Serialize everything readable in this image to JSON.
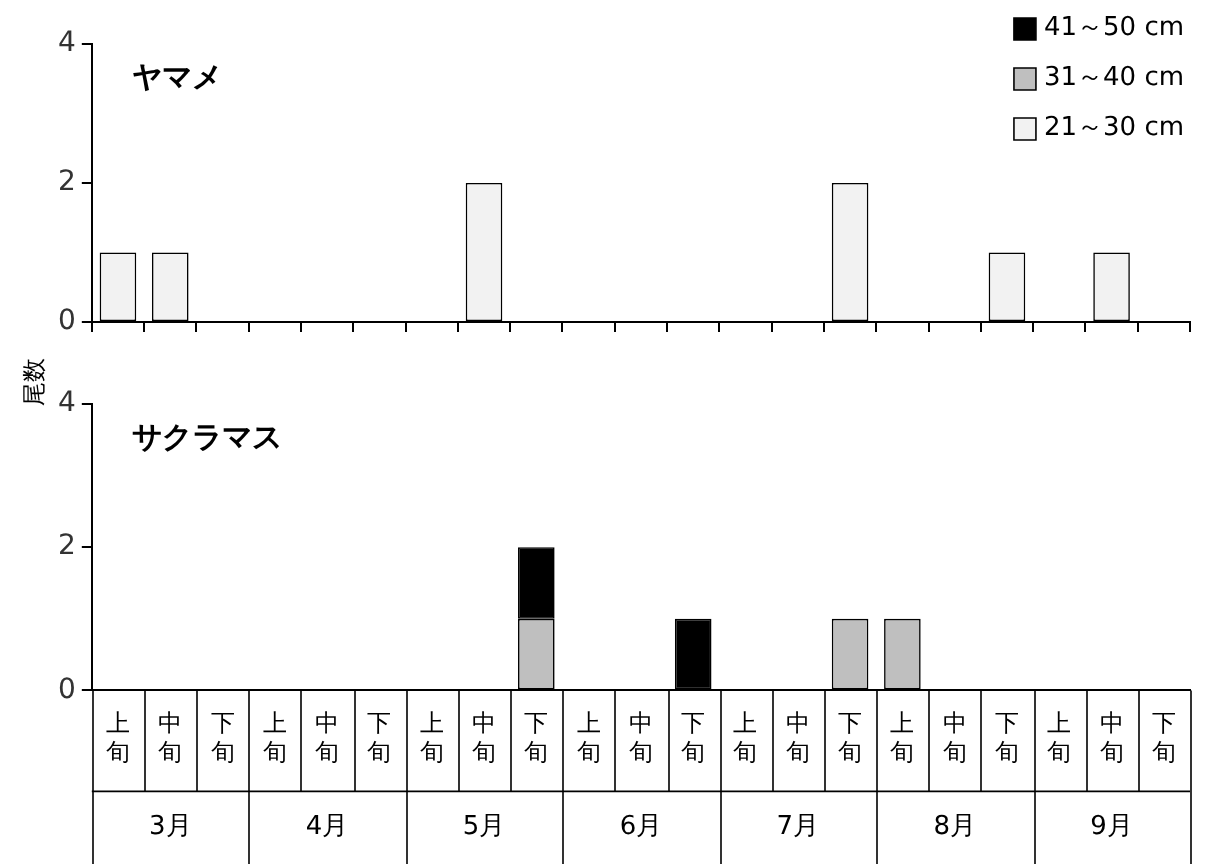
{
  "chart_data": [
    {
      "type": "bar",
      "title": "ヤマメ",
      "ylabel": "尾数",
      "stacked": true,
      "legend": "top right",
      "tick_labels": "y",
      "grid": false,
      "categories": [
        "上旬",
        "中旬",
        "下旬",
        "上旬",
        "中旬",
        "下旬",
        "上旬",
        "中旬",
        "下旬",
        "上旬",
        "中旬",
        "下旬",
        "上旬",
        "中旬",
        "下旬",
        "上旬",
        "中旬",
        "下旬",
        "上旬",
        "中旬",
        "下旬"
      ],
      "ylim": [
        0,
        4
      ],
      "yticks": [
        0,
        2,
        4
      ],
      "series": [
        {
          "name": "21～30 cm",
          "color": "#f2f2f2",
          "values": [
            1,
            1,
            0,
            0,
            0,
            0,
            0,
            2,
            0,
            0,
            0,
            0,
            0,
            0,
            2,
            0,
            0,
            1,
            0,
            1,
            0
          ]
        },
        {
          "name": "31～40 cm",
          "color": "#bfbfbf",
          "values": [
            0,
            0,
            0,
            0,
            0,
            0,
            0,
            0,
            0,
            0,
            0,
            0,
            0,
            0,
            0,
            0,
            0,
            0,
            0,
            0,
            0
          ]
        },
        {
          "name": "41～50 cm",
          "color": "#000000",
          "values": [
            0,
            0,
            0,
            0,
            0,
            0,
            0,
            0,
            0,
            0,
            0,
            0,
            0,
            0,
            0,
            0,
            0,
            0,
            0,
            0,
            0
          ]
        }
      ]
    },
    {
      "type": "bar",
      "title": "サクラマス",
      "stacked": true,
      "grid": false,
      "categories": [
        "上旬",
        "中旬",
        "下旬",
        "上旬",
        "中旬",
        "下旬",
        "上旬",
        "中旬",
        "下旬",
        "上旬",
        "中旬",
        "下旬",
        "上旬",
        "中旬",
        "下旬",
        "上旬",
        "中旬",
        "下旬",
        "上旬",
        "中旬",
        "下旬"
      ],
      "ylim": [
        0,
        4
      ],
      "yticks": [
        0,
        2,
        4
      ],
      "annotations": [
        "3月",
        "4月",
        "5月",
        "6月",
        "7月",
        "8月",
        "9月"
      ],
      "series": [
        {
          "color": "#f2f2f2",
          "values": [
            0,
            0,
            0,
            0,
            0,
            0,
            0,
            0,
            0,
            0,
            0,
            0,
            0,
            0,
            0,
            0,
            0,
            0,
            0,
            0,
            0
          ]
        },
        {
          "color": "#bfbfbf",
          "values": [
            0,
            0,
            0,
            0,
            0,
            0,
            0,
            0,
            1,
            0,
            0,
            0,
            0,
            0,
            1,
            1,
            0,
            0,
            0,
            0,
            0
          ]
        },
        {
          "color": "#000000",
          "values": [
            0,
            0,
            0,
            0,
            0,
            0,
            0,
            0,
            1,
            0,
            0,
            1,
            0,
            0,
            0,
            0,
            0,
            0,
            0,
            0,
            0
          ]
        }
      ]
    }
  ]
}
